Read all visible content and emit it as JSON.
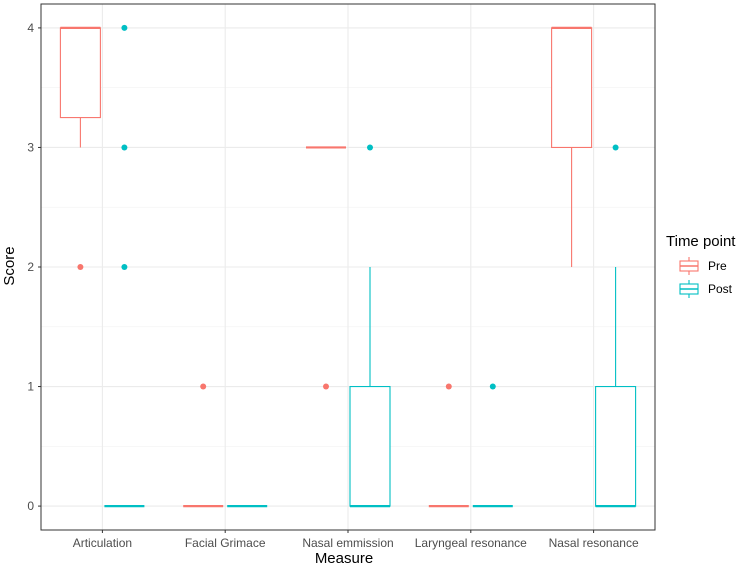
{
  "chart_data": {
    "type": "boxplot",
    "xlabel": "Measure",
    "ylabel": "Score",
    "categories": [
      "Articulation",
      "Facial Grimace",
      "Nasal emmission",
      "Laryngeal resonance",
      "Nasal resonance"
    ],
    "y_ticks": [
      0,
      1,
      2,
      3,
      4
    ],
    "ylim": [
      -0.2,
      4.2
    ],
    "grid": true,
    "legend": {
      "title": "Time point",
      "position": "right"
    },
    "series": [
      {
        "name": "Pre",
        "color": "#F8766D",
        "boxes": [
          {
            "min": 3,
            "q1": 3.25,
            "median": 4,
            "q3": 4,
            "max": 4,
            "outliers": [
              2
            ]
          },
          {
            "min": 0,
            "q1": 0,
            "median": 0,
            "q3": 0,
            "max": 0,
            "outliers": [
              1
            ]
          },
          {
            "min": 3,
            "q1": 3,
            "median": 3,
            "q3": 3,
            "max": 3,
            "outliers": [
              1
            ]
          },
          {
            "min": 0,
            "q1": 0,
            "median": 0,
            "q3": 0,
            "max": 0,
            "outliers": [
              1
            ]
          },
          {
            "min": 2,
            "q1": 3,
            "median": 4,
            "q3": 4,
            "max": 4,
            "outliers": []
          }
        ]
      },
      {
        "name": "Post",
        "color": "#00BFC4",
        "boxes": [
          {
            "min": 0,
            "q1": 0,
            "median": 0,
            "q3": 0,
            "max": 0,
            "outliers": [
              2,
              3,
              4
            ]
          },
          {
            "min": 0,
            "q1": 0,
            "median": 0,
            "q3": 0,
            "max": 0,
            "outliers": []
          },
          {
            "min": 0,
            "q1": 0,
            "median": 0,
            "q3": 1,
            "max": 2,
            "outliers": [
              3
            ]
          },
          {
            "min": 0,
            "q1": 0,
            "median": 0,
            "q3": 0,
            "max": 0,
            "outliers": [
              1
            ]
          },
          {
            "min": 0,
            "q1": 0,
            "median": 0,
            "q3": 1,
            "max": 2,
            "outliers": [
              3
            ]
          }
        ]
      }
    ]
  }
}
